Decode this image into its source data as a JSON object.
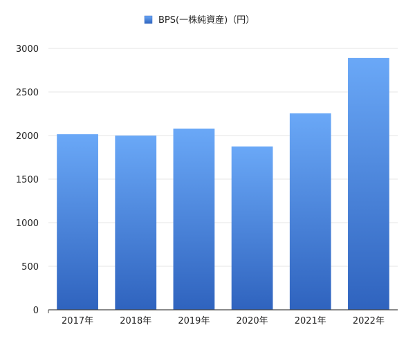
{
  "chart_data": {
    "type": "bar",
    "categories": [
      "2017年",
      "2018年",
      "2019年",
      "2020年",
      "2021年",
      "2022年"
    ],
    "series": [
      {
        "name": "BPS(一株純資産)（円）",
        "values": [
          2015,
          2000,
          2080,
          1875,
          2255,
          2890
        ]
      }
    ],
    "xlabel": "",
    "ylabel": "",
    "ylim": [
      0,
      3000
    ],
    "yticks": [
      0,
      500,
      1000,
      1500,
      2000,
      2500,
      3000
    ],
    "grid": true,
    "legend": "top-center",
    "colors": {
      "bar_top": "#6aa8f7",
      "bar_bottom": "#2f63be",
      "grid": "#e6e6e6",
      "axis": "#444444"
    }
  }
}
